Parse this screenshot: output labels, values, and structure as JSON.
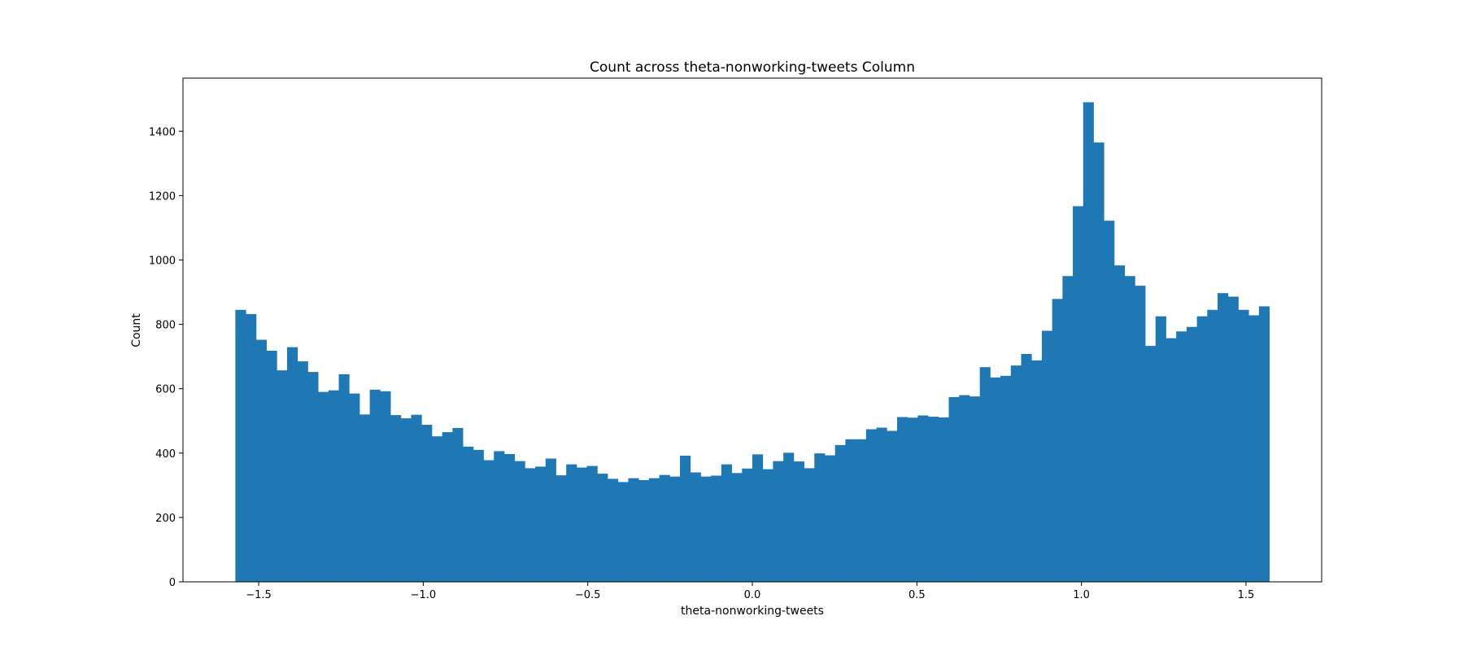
{
  "chart_data": {
    "type": "bar",
    "subtype": "histogram",
    "title": "Count across theta-nonworking-tweets Column",
    "xlabel": "theta-nonworking-tweets",
    "ylabel": "Count",
    "xlim": [
      -1.73,
      1.73
    ],
    "ylim": [
      0,
      1565
    ],
    "x_ticks": [
      -1.5,
      -1.0,
      -0.5,
      0.0,
      0.5,
      1.0,
      1.5
    ],
    "x_tick_labels": [
      "−1.5",
      "−1.0",
      "−0.5",
      "0.0",
      "0.5",
      "1.0",
      "1.5"
    ],
    "y_ticks": [
      0,
      200,
      400,
      600,
      800,
      1000,
      1200,
      1400
    ],
    "y_tick_labels": [
      "0",
      "200",
      "400",
      "600",
      "800",
      "1000",
      "1200",
      "1400"
    ],
    "bin_range": [
      -1.5708,
      1.5708
    ],
    "bar_color": "#1f77b4",
    "grid": false,
    "legend": "none",
    "values": [
      845,
      832,
      752,
      718,
      657,
      729,
      685,
      652,
      590,
      595,
      645,
      585,
      520,
      597,
      592,
      518,
      508,
      519,
      488,
      452,
      465,
      478,
      420,
      410,
      378,
      406,
      397,
      375,
      353,
      358,
      383,
      331,
      365,
      355,
      360,
      336,
      320,
      310,
      322,
      316,
      322,
      332,
      327,
      392,
      340,
      327,
      330,
      365,
      338,
      352,
      396,
      350,
      375,
      401,
      374,
      353,
      399,
      393,
      425,
      443,
      443,
      474,
      479,
      469,
      512,
      510,
      517,
      513,
      511,
      574,
      580,
      576,
      667,
      635,
      640,
      672,
      708,
      688,
      780,
      879,
      950,
      1167,
      1490,
      1365,
      1122,
      983,
      950,
      920,
      733,
      825,
      757,
      778,
      792,
      825,
      845,
      897,
      886,
      845,
      828,
      856
    ]
  }
}
